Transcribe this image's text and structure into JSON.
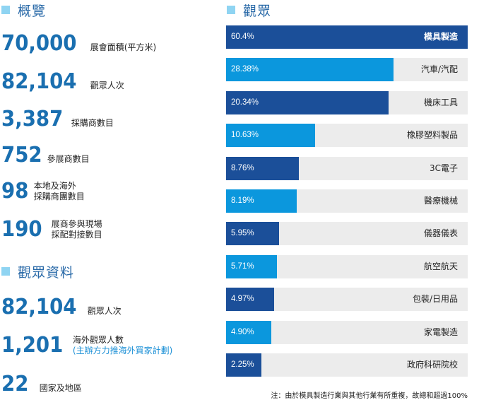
{
  "overview": {
    "heading": "概覽",
    "stats": [
      {
        "value": "70,000",
        "label_lines": [
          "展會面積(平方米)"
        ]
      },
      {
        "value": "82,104",
        "label_lines": [
          "觀眾人次"
        ]
      },
      {
        "value": "3,387",
        "label_lines": [
          "採購商數目"
        ]
      },
      {
        "value": "752",
        "label_lines": [
          "參展商數目"
        ]
      },
      {
        "value": "98",
        "label_lines": [
          "本地及海外",
          "採購商團數目"
        ]
      },
      {
        "value": "190",
        "label_lines": [
          "展商參與現場",
          "採配對接數目"
        ]
      }
    ]
  },
  "visitor_info": {
    "heading": "觀眾資料",
    "stats": [
      {
        "value": "82,104",
        "label_lines": [
          "觀眾人次"
        ]
      },
      {
        "value": "1,201",
        "label_lines": [
          "海外觀眾人數"
        ],
        "sub_label": "(主辦方力推海外買家計劃)"
      },
      {
        "value": "22",
        "label_lines": [
          "國家及地區"
        ]
      }
    ]
  },
  "colors": {
    "dark_bar": "#1b4f99",
    "light_bar": "#0b97dd",
    "track": "#ececec",
    "number": "#1a6fb0",
    "heading": "#2a6aa8",
    "marker": "#8fd4f2"
  },
  "chart_data": {
    "type": "bar",
    "orientation": "horizontal",
    "title": "觀眾",
    "categories": [
      "模具製造",
      "汽車/汽配",
      "機床工具",
      "橡膠塑料製品",
      "3C電子",
      "醫療機械",
      "儀器儀表",
      "航空航天",
      "包裝/日用品",
      "家電製造",
      "政府科研院校"
    ],
    "values": [
      60.4,
      28.38,
      20.34,
      10.63,
      8.76,
      8.19,
      5.95,
      5.71,
      4.97,
      4.9,
      2.25
    ],
    "value_labels": [
      "60.4%",
      "28.38%",
      "20.34%",
      "10.63%",
      "8.76%",
      "8.19%",
      "5.95%",
      "5.71%",
      "4.97%",
      "4.90%",
      "2.25%"
    ],
    "displayed_fill_fraction": [
      1.0,
      0.693,
      0.673,
      0.368,
      0.301,
      0.292,
      0.219,
      0.211,
      0.199,
      0.187,
      0.146
    ],
    "bar_color_scheme": [
      "dark",
      "light",
      "dark",
      "light",
      "dark",
      "light",
      "dark",
      "light",
      "dark",
      "light",
      "dark"
    ],
    "unit": "%",
    "grid": false,
    "legend": "none",
    "footnote": "注：由於模具製造行業與其他行業有所重複，故總和超過100%"
  }
}
